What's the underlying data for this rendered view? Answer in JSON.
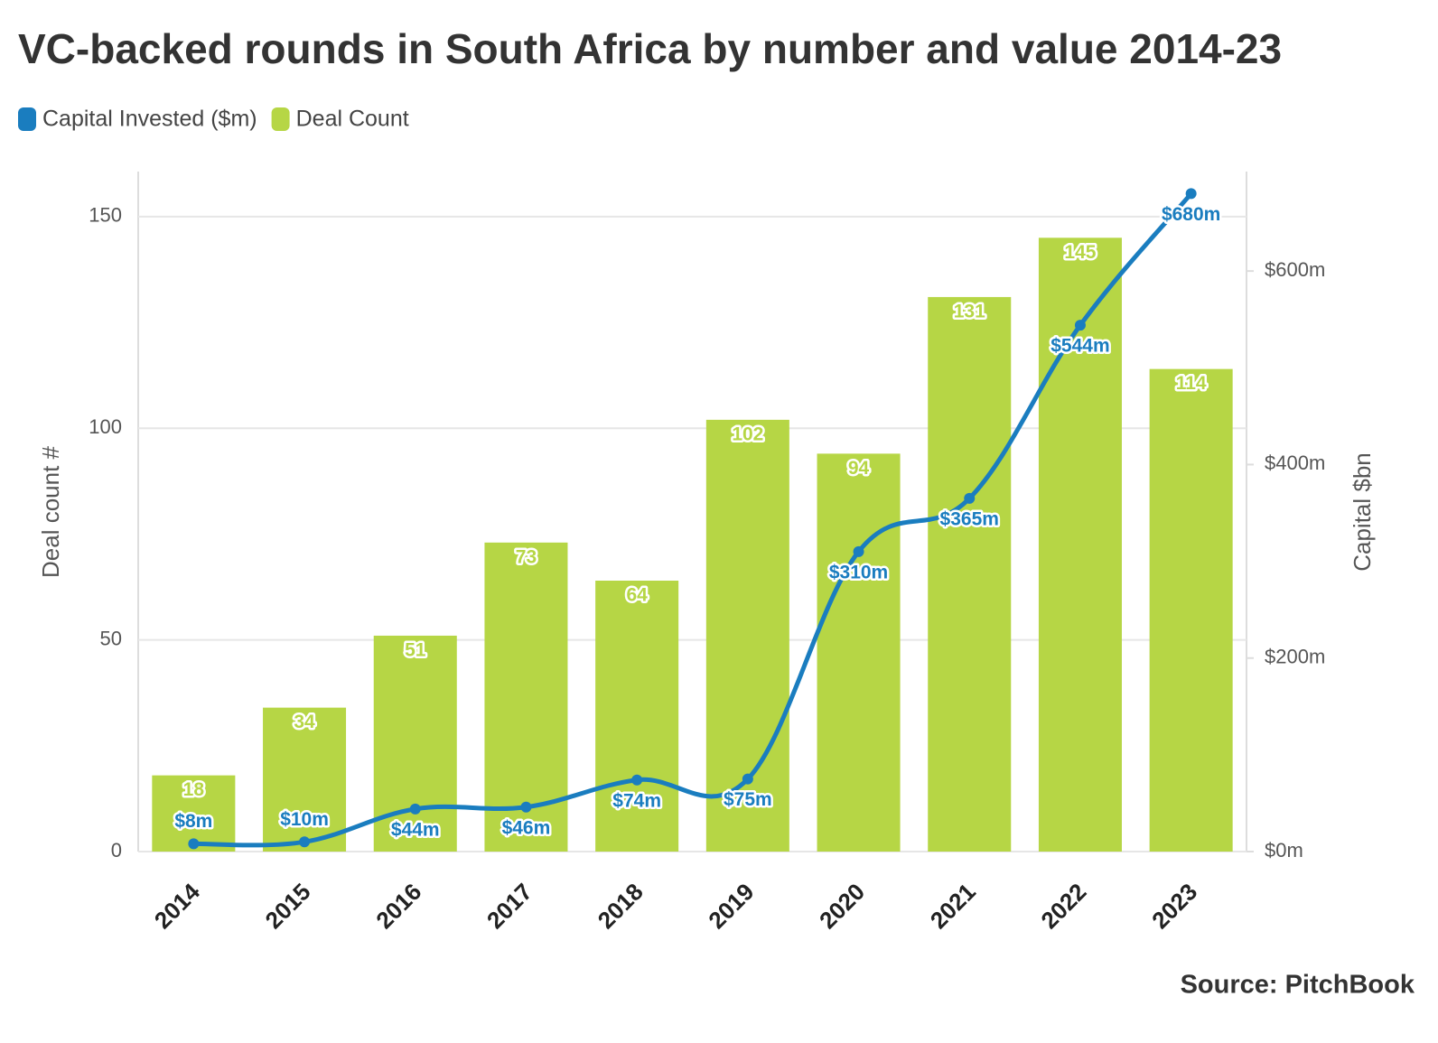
{
  "chart_data": {
    "type": "bar-line",
    "title": "VC-backed rounds in South Africa by number and value 2014-23",
    "categories": [
      "2014",
      "2015",
      "2016",
      "2017",
      "2018",
      "2019",
      "2020",
      "2021",
      "2022",
      "2023"
    ],
    "series": [
      {
        "name": "Capital Invested ($m)",
        "type": "line",
        "axis": "y2",
        "color": "#1a7dbf",
        "values": [
          8,
          10,
          44,
          46,
          74,
          75,
          310,
          365,
          544,
          680
        ],
        "value_labels": [
          "$8m",
          "$10m",
          "$44m",
          "$46m",
          "$74m",
          "$75m",
          "$310m",
          "$365m",
          "$544m",
          "$680m"
        ]
      },
      {
        "name": "Deal Count",
        "type": "bar",
        "color": "#b6d645",
        "values": [
          18,
          34,
          51,
          73,
          64,
          102,
          94,
          131,
          145,
          114
        ]
      }
    ],
    "ylabel": "Deal count #",
    "y2label": "Capital $bn",
    "ylim": [
      0,
      160
    ],
    "yticks": [
      0,
      50,
      100,
      150
    ],
    "y2lim": [
      0,
      700
    ],
    "y2ticks": [
      {
        "value": 0,
        "label": "$0m"
      },
      {
        "value": 200,
        "label": "$200m"
      },
      {
        "value": 400,
        "label": "$400m"
      },
      {
        "value": 600,
        "label": "$600m"
      }
    ],
    "grid": true,
    "legend": "top-left",
    "source": "Source: PitchBook"
  }
}
